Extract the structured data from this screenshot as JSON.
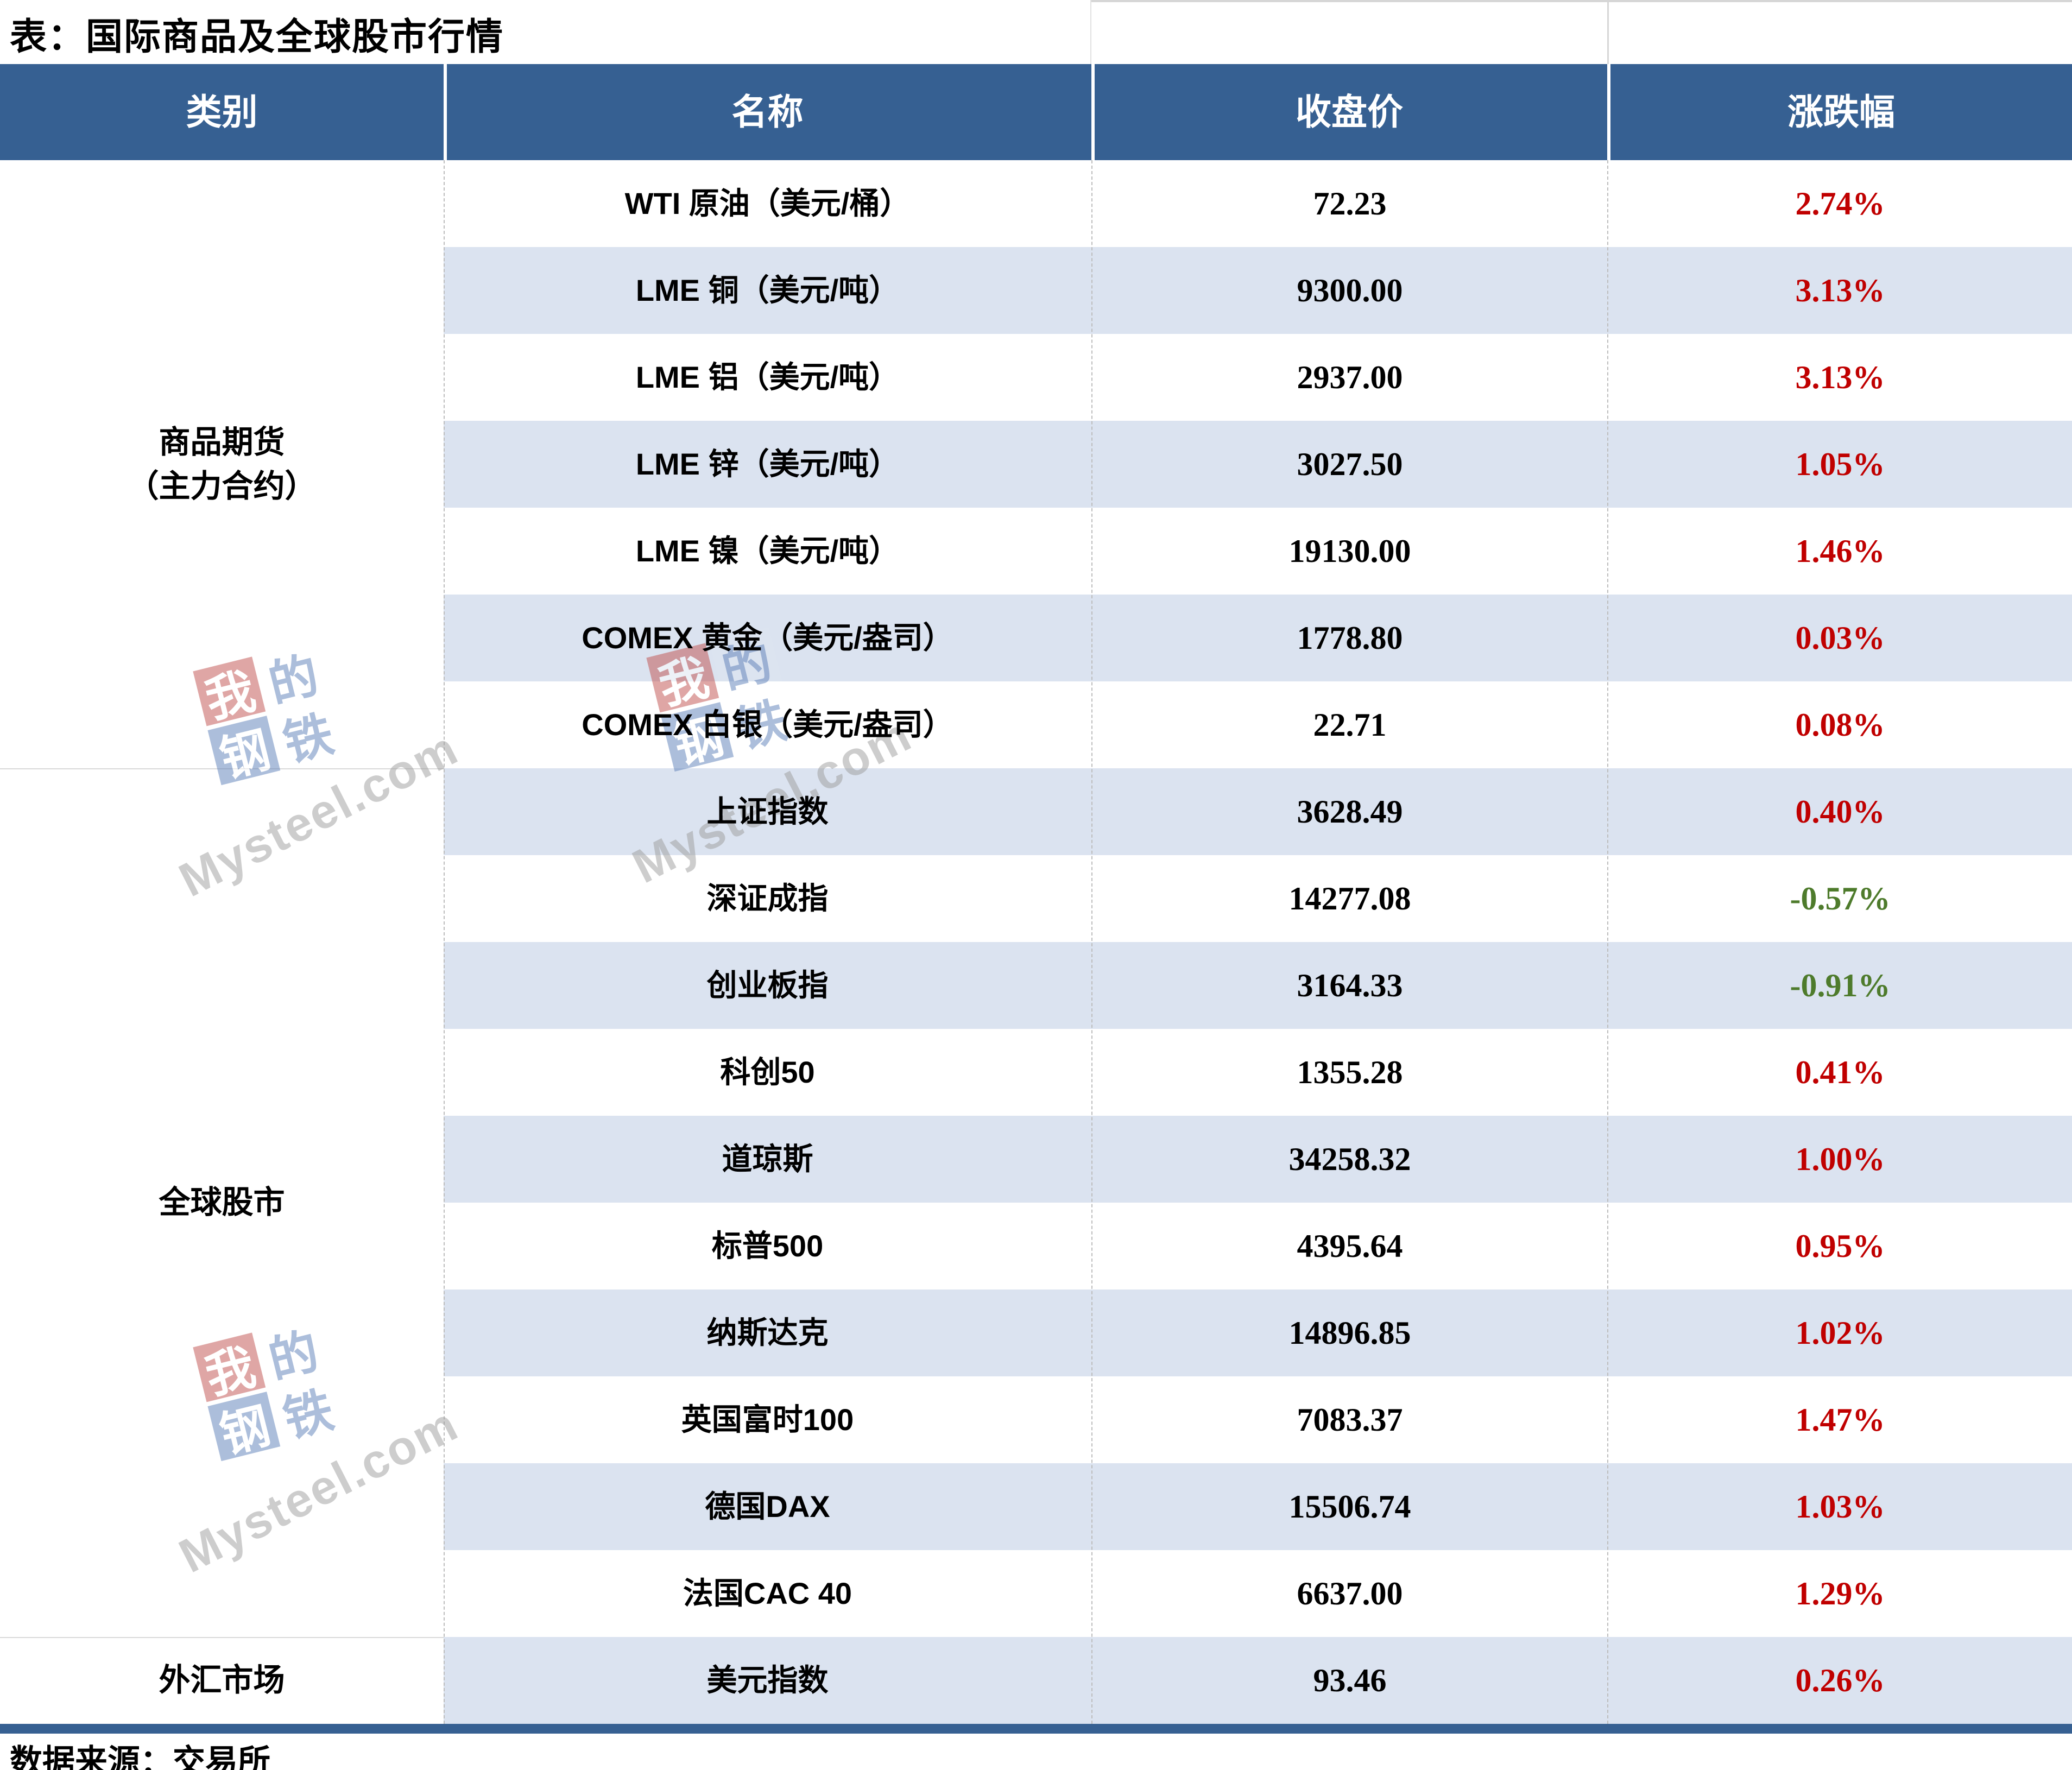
{
  "title": "表：国际商品及全球股市行情",
  "footer": "数据来源：交易所",
  "header": {
    "category": "类别",
    "name": "名称",
    "close": "收盘价",
    "change": "涨跌幅"
  },
  "groups": [
    {
      "line1": "商品期货",
      "line2": "（主力合约）",
      "rows": 7
    },
    {
      "line1": "全球股市",
      "line2": "",
      "rows": 10
    },
    {
      "line1": "外汇市场",
      "line2": "",
      "rows": 1
    }
  ],
  "rows": [
    {
      "name": "WTI 原油（美元/桶）",
      "close": "72.23",
      "change": "2.74%",
      "dir": "up",
      "color": "#c00000"
    },
    {
      "name": "LME 铜（美元/吨）",
      "close": "9300.00",
      "change": "3.13%",
      "dir": "up",
      "color": "#c00000"
    },
    {
      "name": "LME 铝（美元/吨）",
      "close": "2937.00",
      "change": "3.13%",
      "dir": "up",
      "color": "#c00000"
    },
    {
      "name": "LME 锌（美元/吨）",
      "close": "3027.50",
      "change": "1.05%",
      "dir": "up",
      "color": "#c00000"
    },
    {
      "name": "LME 镍（美元/吨）",
      "close": "19130.00",
      "change": "1.46%",
      "dir": "up",
      "color": "#c00000"
    },
    {
      "name": "COMEX 黄金（美元/盎司）",
      "close": "1778.80",
      "change": "0.03%",
      "dir": "up",
      "color": "#c00000"
    },
    {
      "name": "COMEX 白银（美元/盎司）",
      "close": "22.71",
      "change": "0.08%",
      "dir": "up",
      "color": "#c00000"
    },
    {
      "name": "上证指数",
      "close": "3628.49",
      "change": "0.40%",
      "dir": "up",
      "color": "#c00000"
    },
    {
      "name": "深证成指",
      "close": "14277.08",
      "change": "-0.57%",
      "dir": "down",
      "color": "#4e7b2c"
    },
    {
      "name": "创业板指",
      "close": "3164.33",
      "change": "-0.91%",
      "dir": "down",
      "color": "#4e7b2c"
    },
    {
      "name": "科创50",
      "close": "1355.28",
      "change": "0.41%",
      "dir": "up",
      "color": "#c00000"
    },
    {
      "name": "道琼斯",
      "close": "34258.32",
      "change": "1.00%",
      "dir": "up",
      "color": "#c00000"
    },
    {
      "name": "标普500",
      "close": "4395.64",
      "change": "0.95%",
      "dir": "up",
      "color": "#c00000"
    },
    {
      "name": "纳斯达克",
      "close": "14896.85",
      "change": "1.02%",
      "dir": "up",
      "color": "#c00000"
    },
    {
      "name": "英国富时100",
      "close": "7083.37",
      "change": "1.47%",
      "dir": "up",
      "color": "#c00000"
    },
    {
      "name": "德国DAX",
      "close": "15506.74",
      "change": "1.03%",
      "dir": "up",
      "color": "#c00000"
    },
    {
      "name": "法国CAC 40",
      "close": "6637.00",
      "change": "1.29%",
      "dir": "up",
      "color": "#c00000"
    },
    {
      "name": "美元指数",
      "close": "93.46",
      "change": "0.26%",
      "dir": "up",
      "color": "#c00000"
    }
  ],
  "colors": {
    "header_bg": "#366092",
    "stripe": "#dbe3f0",
    "up_red": "#c00000",
    "down_green": "#4e7b2c",
    "bottom_bar": "#366092"
  },
  "watermark": {
    "c1": "我",
    "c2": "的",
    "c3": "钢",
    "c4": "铁",
    "site": "Mysteel.com"
  },
  "chart_data": {
    "type": "table",
    "title": "表：国际商品及全球股市行情",
    "columns": [
      "类别",
      "名称",
      "收盘价",
      "涨跌幅"
    ],
    "row_groups": [
      {
        "category": "商品期货（主力合约）",
        "rows": [
          [
            "WTI 原油（美元/桶）",
            72.23,
            "2.74%"
          ],
          [
            "LME 铜（美元/吨）",
            9300.0,
            "3.13%"
          ],
          [
            "LME 铝（美元/吨）",
            2937.0,
            "3.13%"
          ],
          [
            "LME 锌（美元/吨）",
            3027.5,
            "1.05%"
          ],
          [
            "LME 镍（美元/吨）",
            19130.0,
            "1.46%"
          ],
          [
            "COMEX 黄金（美元/盎司）",
            1778.8,
            "0.03%"
          ],
          [
            "COMEX 白银（美元/盎司）",
            22.71,
            "0.08%"
          ]
        ]
      },
      {
        "category": "全球股市",
        "rows": [
          [
            "上证指数",
            3628.49,
            "0.40%"
          ],
          [
            "深证成指",
            14277.08,
            "-0.57%"
          ],
          [
            "创业板指",
            3164.33,
            "-0.91%"
          ],
          [
            "科创50",
            1355.28,
            "0.41%"
          ],
          [
            "道琼斯",
            34258.32,
            "1.00%"
          ],
          [
            "标普500",
            4395.64,
            "0.95%"
          ],
          [
            "纳斯达克",
            14896.85,
            "1.02%"
          ],
          [
            "英国富时100",
            7083.37,
            "1.47%"
          ],
          [
            "德国DAX",
            15506.74,
            "1.03%"
          ],
          [
            "法国CAC 40",
            6637.0,
            "1.29%"
          ]
        ]
      },
      {
        "category": "外汇市场",
        "rows": [
          [
            "美元指数",
            93.46,
            "0.26%"
          ]
        ]
      }
    ],
    "source_note": "数据来源：交易所",
    "legend_position": "none",
    "grid": "row-stripes"
  }
}
